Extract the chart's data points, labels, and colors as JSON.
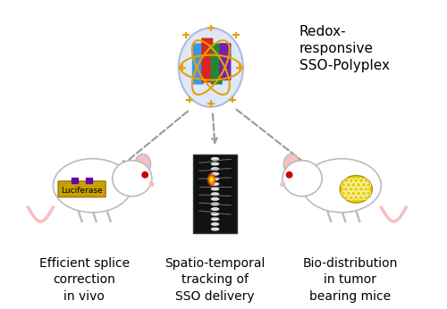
{
  "title": "",
  "background_color": "#ffffff",
  "polyplex_label": "Redox-\nresponsive\nSSO-Polyplex",
  "left_label": "Efficient splice\ncorrection\nin vivo",
  "center_label": "Spatio-temporal\ntracking of\nSSO delivery",
  "right_label": "Bio-distribution\nin tumor\nbearing mice",
  "arrow_color": "#999999",
  "mouse_body_color": "#ffffff",
  "mouse_outline_color": "#cccccc",
  "mouse_ear_color": "#f5c0c0",
  "mouse_eye_color": "#cc0000",
  "mouse_tail_color": "#f5c0c0",
  "luciferase_box_color": "#c8a000",
  "luciferase_text": "Luciferase",
  "tumor_color": "#e8d000",
  "polyplex_outer_color": "#d0ddf5",
  "polyplex_orbit_color": "#e8a000",
  "text_fontsize": 11,
  "label_fontsize": 10
}
